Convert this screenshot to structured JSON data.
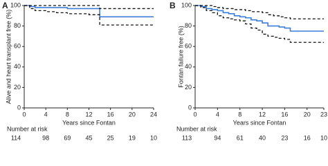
{
  "chart_data": [
    {
      "type": "line",
      "step": true,
      "panel": "A",
      "ylabel": "Alive and heart transplant free (%)",
      "xlabel": "Years since Fontan",
      "xlim": [
        0,
        24
      ],
      "xticks": [
        0,
        4,
        8,
        12,
        16,
        20,
        24
      ],
      "ylim": [
        0,
        100
      ],
      "yticks": [
        0,
        20,
        40,
        60,
        80,
        100
      ],
      "x": [
        0,
        1,
        2,
        4,
        6,
        8,
        10,
        12,
        13,
        14,
        16,
        20,
        24
      ],
      "series": [
        {
          "color": "#3b7dd8",
          "dashed": false,
          "values": [
            100,
            99,
            98,
            98,
            98,
            97,
            97,
            97,
            97,
            89,
            89,
            89,
            89
          ]
        },
        {
          "color": "#111111",
          "dashed": true,
          "values": [
            100,
            100,
            100,
            100,
            100,
            100,
            100,
            100,
            100,
            97,
            97,
            97,
            97
          ]
        },
        {
          "color": "#111111",
          "dashed": true,
          "values": [
            100,
            97,
            95,
            94,
            93,
            92,
            92,
            91,
            91,
            81,
            81,
            81,
            81
          ]
        }
      ],
      "risk_label": "Number at risk",
      "risk_counts": [
        114,
        98,
        69,
        45,
        25,
        19,
        10
      ]
    },
    {
      "type": "line",
      "step": true,
      "panel": "B",
      "ylabel": "Fontan failure free (%)",
      "xlabel": "Years since Fontan",
      "xlim": [
        0,
        23
      ],
      "xticks": [
        0,
        4,
        8,
        12,
        16,
        20,
        23
      ],
      "ylim": [
        0,
        100
      ],
      "yticks": [
        0,
        20,
        40,
        60,
        80,
        100
      ],
      "x": [
        0,
        1,
        2,
        3,
        4,
        5,
        6,
        7,
        8,
        9,
        10,
        11,
        12,
        13,
        14,
        15,
        16,
        17,
        18,
        23
      ],
      "series": [
        {
          "color": "#3b7dd8",
          "dashed": false,
          "values": [
            100,
            99,
            97,
            96,
            95,
            93,
            92,
            90,
            89,
            88,
            86,
            85,
            83,
            80,
            80,
            79,
            78,
            75,
            75,
            75
          ]
        },
        {
          "color": "#111111",
          "dashed": true,
          "values": [
            100,
            100,
            100,
            99,
            98,
            97,
            97,
            96,
            96,
            95,
            94,
            94,
            93,
            91,
            90,
            89,
            88,
            87,
            87,
            87
          ]
        },
        {
          "color": "#111111",
          "dashed": true,
          "values": [
            100,
            98,
            95,
            93,
            90,
            88,
            87,
            86,
            85,
            82,
            78,
            76,
            72,
            70,
            69,
            68,
            67,
            64,
            64,
            64
          ]
        }
      ],
      "risk_label": "Number at risk",
      "risk_counts": [
        113,
        94,
        61,
        40,
        23,
        16,
        10
      ]
    }
  ]
}
